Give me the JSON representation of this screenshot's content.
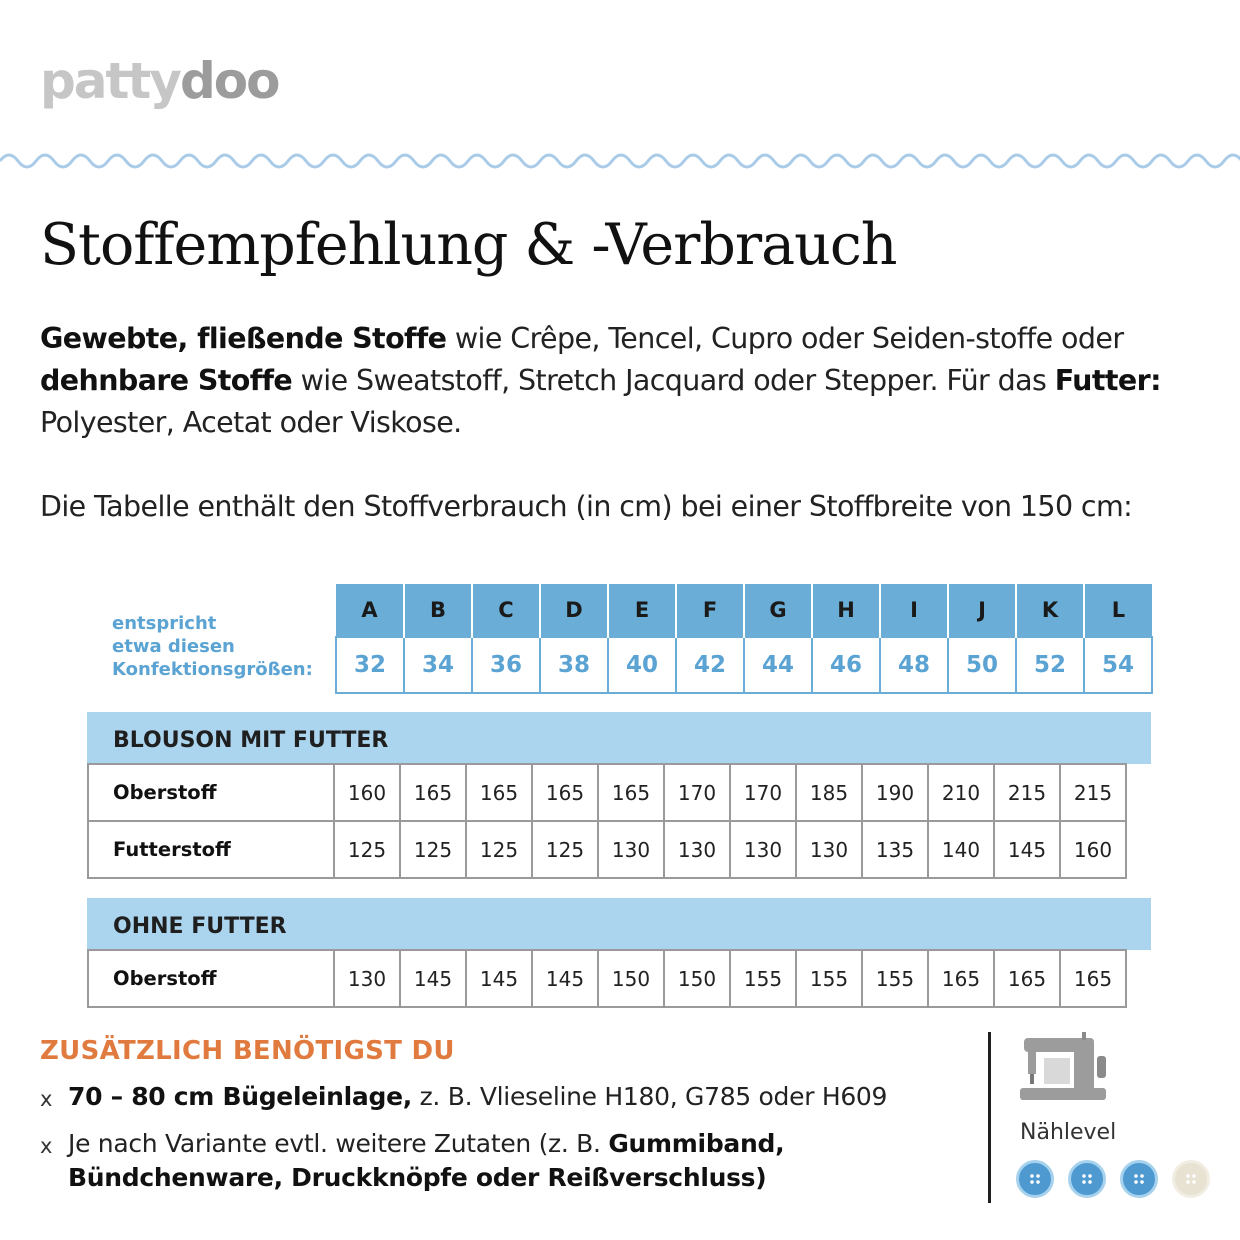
{
  "brand": {
    "logo_part1": "patty",
    "logo_part2": "doo"
  },
  "title": "Stoffempfehlung & -Verbrauch",
  "intro": {
    "b1": "Gewebte, fließende Stoffe",
    "t1": " wie Crêpe, Tencel, Cupro oder Seiden-stoffe oder ",
    "b2": "dehnbare Stoffe",
    "t2": " wie Sweatstoff, Stretch Jacquard oder Stepper. Für das ",
    "b3": "Futter:",
    "t3": " Polyester, Acetat oder Viskose."
  },
  "table_info": "Die Tabelle enthält den Stoffverbrauch (in cm) bei einer Stoffbreite von 150 cm:",
  "size_note": [
    "entspricht",
    "etwa diesen",
    "Konfektionsgrößen:"
  ],
  "sizes": {
    "letters": [
      "A",
      "B",
      "C",
      "D",
      "E",
      "F",
      "G",
      "H",
      "I",
      "J",
      "K",
      "L"
    ],
    "numbers": [
      "32",
      "34",
      "36",
      "38",
      "40",
      "42",
      "44",
      "46",
      "48",
      "50",
      "52",
      "54"
    ]
  },
  "sections": [
    {
      "heading": "BLOUSON MIT FUTTER",
      "rows": [
        {
          "label": "Oberstoff",
          "values": [
            "160",
            "165",
            "165",
            "165",
            "165",
            "170",
            "170",
            "185",
            "190",
            "210",
            "215",
            "215"
          ]
        },
        {
          "label": "Futterstoff",
          "values": [
            "125",
            "125",
            "125",
            "125",
            "130",
            "130",
            "130",
            "130",
            "135",
            "140",
            "145",
            "160"
          ]
        }
      ]
    },
    {
      "heading": "OHNE FUTTER",
      "rows": [
        {
          "label": "Oberstoff",
          "values": [
            "130",
            "145",
            "145",
            "145",
            "150",
            "150",
            "155",
            "155",
            "155",
            "165",
            "165",
            "165"
          ]
        }
      ]
    }
  ],
  "extras": {
    "heading": "ZUSÄTZLICH BENÖTIGST DU",
    "marker": "x",
    "item1": {
      "bold": "70 – 80 cm Bügeleinlage,",
      "text": " z. B. Vlieseline H180, G785 oder H609"
    },
    "item2": {
      "text": "Je nach Variante evtl. weitere Zutaten (z. B. ",
      "bold": "Gummiband, Bündchenware, Druckknöpfe oder Reißverschluss)"
    }
  },
  "sewing_level": {
    "label": "Nählevel",
    "level": 3,
    "max": 4,
    "icon": "sewing-machine-icon"
  },
  "colors": {
    "accent_blue": "#6aaed8",
    "light_blue": "#abd5ee",
    "orange": "#e07a3e"
  }
}
